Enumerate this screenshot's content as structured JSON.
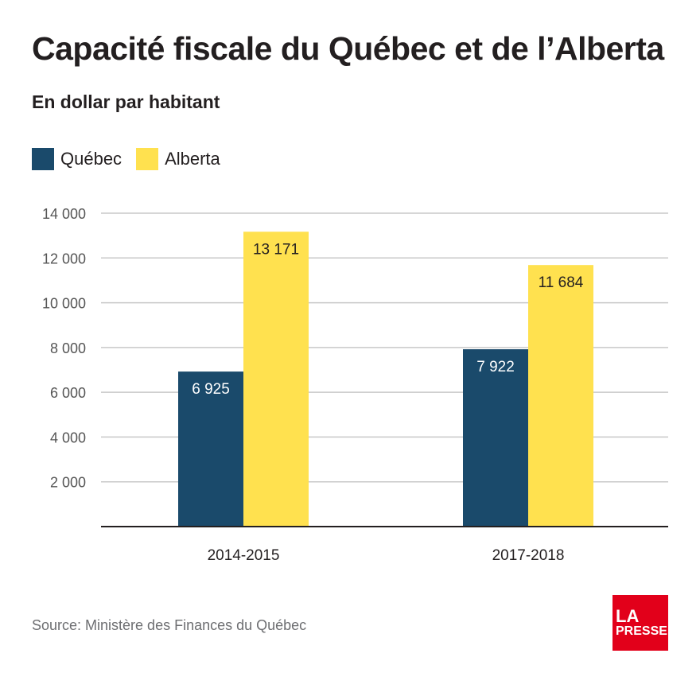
{
  "chart_data": {
    "type": "bar",
    "title": "Capacité fiscale du Québec et de l’Alberta",
    "subtitle": "En dollar par habitant",
    "categories": [
      "2014-2015",
      "2017-2018"
    ],
    "series": [
      {
        "name": "Québec",
        "values": [
          6925,
          7922
        ],
        "labels": [
          "6 925",
          "7 922"
        ],
        "color": "#1a4a6b"
      },
      {
        "name": "Alberta",
        "values": [
          13171,
          11684
        ],
        "labels": [
          "13 171",
          "11 684"
        ],
        "color": "#ffe14f"
      }
    ],
    "ylim": [
      0,
      14000
    ],
    "yticks": [
      2000,
      4000,
      6000,
      8000,
      10000,
      12000,
      14000
    ],
    "ytick_labels": [
      "2 000",
      "4 000",
      "6 000",
      "8 000",
      "10 000",
      "12 000",
      "14 000"
    ],
    "grid": true,
    "legend": "top-left"
  },
  "source": "Source: Ministère des Finances du Québec",
  "logo": {
    "line1": "LA",
    "line2": "PRESSE",
    "color": "#e2001a"
  }
}
